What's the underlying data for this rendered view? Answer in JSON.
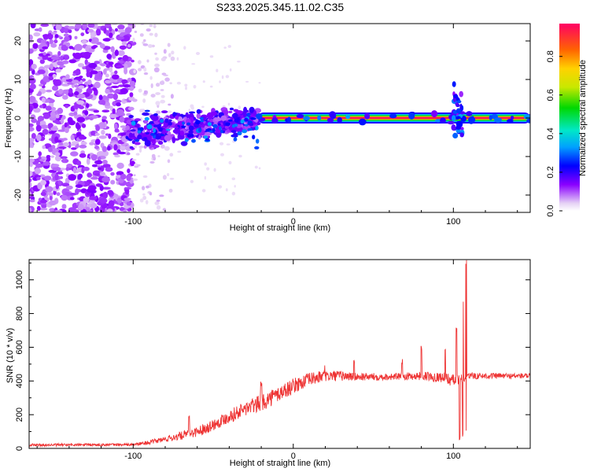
{
  "title": "S233.2025.345.11.02.C35",
  "chart_data": [
    {
      "type": "heatmap",
      "name": "spectrogram",
      "xlabel": "Height of straight line (km)",
      "ylabel": "Frequency (Hz)",
      "xlim": [
        -165,
        148
      ],
      "ylim": [
        -24.5,
        24.5
      ],
      "xticks": [
        -100,
        0,
        100
      ],
      "yticks": [
        -20,
        -10,
        0,
        10,
        20
      ],
      "colorbar": {
        "label": "Normalized spectral amplitude",
        "range": [
          0,
          0.97
        ],
        "ticks": [
          0.0,
          0.2,
          0.4,
          0.6,
          0.8
        ]
      },
      "regions": [
        {
          "name": "noise-field",
          "x": [
            -165,
            -100
          ],
          "y": [
            -24.5,
            24.5
          ],
          "max_amplitude": 0.15
        },
        {
          "name": "noise-fringe",
          "x": [
            -100,
            -75
          ],
          "y": [
            -24.5,
            24.5
          ],
          "max_amplitude": 0.05
        },
        {
          "name": "scatter-cluster",
          "x": [
            -103,
            -22
          ],
          "y": [
            -10,
            6
          ],
          "max_amplitude": 0.35
        },
        {
          "name": "carrier-line",
          "x": [
            -22,
            148
          ],
          "y": [
            -1.5,
            1.5
          ],
          "max_amplitude": 0.97
        },
        {
          "name": "spike",
          "x": [
            100,
            106
          ],
          "y": [
            -5,
            9
          ],
          "max_amplitude": 0.4
        }
      ]
    },
    {
      "type": "line",
      "name": "snr",
      "xlabel": "Height of straight line (km)",
      "ylabel": "SNR (10 * v/v)",
      "xlim": [
        -165,
        148
      ],
      "ylim": [
        0,
        1120
      ],
      "xticks": [
        -100,
        0,
        100
      ],
      "yticks": [
        0,
        200,
        400,
        600,
        800,
        1000
      ],
      "color": "#ee3333",
      "envelope": [
        {
          "x": -165,
          "y": 20,
          "noise": 8
        },
        {
          "x": -100,
          "y": 22,
          "noise": 8
        },
        {
          "x": -90,
          "y": 35,
          "noise": 12
        },
        {
          "x": -80,
          "y": 55,
          "noise": 18
        },
        {
          "x": -70,
          "y": 75,
          "noise": 25
        },
        {
          "x": -60,
          "y": 100,
          "noise": 30
        },
        {
          "x": -50,
          "y": 140,
          "noise": 35
        },
        {
          "x": -40,
          "y": 190,
          "noise": 40
        },
        {
          "x": -30,
          "y": 235,
          "noise": 45
        },
        {
          "x": -20,
          "y": 270,
          "noise": 50
        },
        {
          "x": -10,
          "y": 320,
          "noise": 50
        },
        {
          "x": 0,
          "y": 370,
          "noise": 45
        },
        {
          "x": 10,
          "y": 410,
          "noise": 40
        },
        {
          "x": 20,
          "y": 430,
          "noise": 35
        },
        {
          "x": 30,
          "y": 430,
          "noise": 30
        },
        {
          "x": 40,
          "y": 425,
          "noise": 25
        },
        {
          "x": 60,
          "y": 425,
          "noise": 20
        },
        {
          "x": 80,
          "y": 430,
          "noise": 25
        },
        {
          "x": 95,
          "y": 420,
          "noise": 30
        },
        {
          "x": 100,
          "y": 400,
          "noise": 40
        },
        {
          "x": 110,
          "y": 430,
          "noise": 20
        },
        {
          "x": 148,
          "y": 430,
          "noise": 15
        }
      ],
      "spikes": [
        {
          "x": -65,
          "y": 210
        },
        {
          "x": -20,
          "y": 400
        },
        {
          "x": 20,
          "y": 500
        },
        {
          "x": 38,
          "y": 540
        },
        {
          "x": 68,
          "y": 530
        },
        {
          "x": 80,
          "y": 610
        },
        {
          "x": 95,
          "y": 600
        },
        {
          "x": 102,
          "y": 720
        },
        {
          "x": 104,
          "y": 900
        },
        {
          "x": 106,
          "y": 880
        },
        {
          "x": 108,
          "y": 1120
        }
      ],
      "dips": [
        {
          "x": 104,
          "y": 50
        },
        {
          "x": 106,
          "y": 60
        },
        {
          "x": 108,
          "y": 100
        }
      ]
    }
  ]
}
